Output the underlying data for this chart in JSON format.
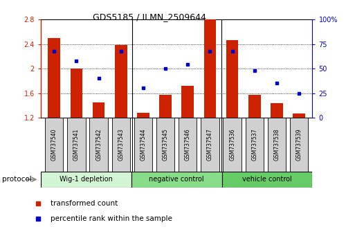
{
  "title": "GDS5185 / ILMN_2509644",
  "samples": [
    "GSM737540",
    "GSM737541",
    "GSM737542",
    "GSM737543",
    "GSM737544",
    "GSM737545",
    "GSM737546",
    "GSM737547",
    "GSM737536",
    "GSM737537",
    "GSM737538",
    "GSM737539"
  ],
  "red_values": [
    2.5,
    2.0,
    1.45,
    2.38,
    1.28,
    1.57,
    1.72,
    2.8,
    2.46,
    1.57,
    1.44,
    1.27
  ],
  "blue_values": [
    68,
    58,
    40,
    68,
    30,
    50,
    54,
    68,
    68,
    48,
    35,
    25
  ],
  "y_min": 1.2,
  "y_max": 2.8,
  "y_ticks": [
    1.2,
    1.6,
    2.0,
    2.4,
    2.8
  ],
  "y_tick_labels": [
    "1.2",
    "1.6",
    "2",
    "2.4",
    "2.8"
  ],
  "y2_ticks_vals": [
    0,
    25,
    50,
    75,
    100
  ],
  "y2_tick_labels": [
    "0",
    "25",
    "50",
    "75",
    "100%"
  ],
  "groups": [
    {
      "label": "Wig-1 depletion",
      "start": 0,
      "end": 4,
      "color": "#d4f5d4"
    },
    {
      "label": "negative control",
      "start": 4,
      "end": 8,
      "color": "#88dd88"
    },
    {
      "label": "vehicle control",
      "start": 8,
      "end": 12,
      "color": "#66cc66"
    }
  ],
  "red_color": "#cc2200",
  "blue_color": "#0000cc",
  "bar_width": 0.55,
  "protocol_label": "protocol",
  "legend_red": "transformed count",
  "legend_blue": "percentile rank within the sample",
  "base_value": 1.2,
  "grid_yticks": [
    1.6,
    2.0,
    2.4
  ]
}
